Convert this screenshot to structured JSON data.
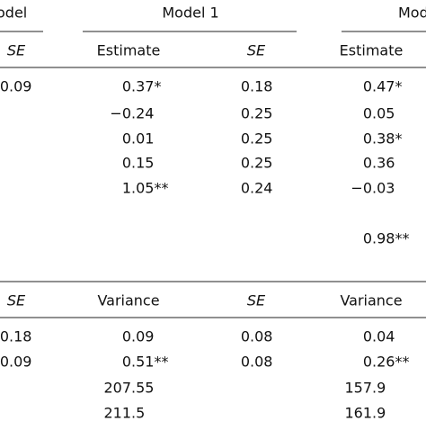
{
  "table": {
    "group_headers": [
      "odel",
      "Model 1",
      "Mod"
    ],
    "fixed": {
      "columns": [
        "SE",
        "Estimate",
        "SE",
        "Estimate"
      ],
      "rows": [
        [
          "0.09",
          "0.37*",
          "0.18",
          "0.47*"
        ],
        [
          null,
          "−0.24",
          "0.25",
          "0.05"
        ],
        [
          null,
          "0.01",
          "0.25",
          "0.38*"
        ],
        [
          null,
          "0.15",
          "0.25",
          "0.36"
        ],
        [
          null,
          "1.05**",
          "0.24",
          "−0.03"
        ],
        [
          null,
          null,
          null,
          null
        ],
        [
          null,
          null,
          null,
          "0.98**"
        ]
      ]
    },
    "random": {
      "columns": [
        "SE",
        "Variance",
        "SE",
        "Variance"
      ],
      "rows": [
        [
          "0.18",
          "0.09",
          "0.08",
          "0.04"
        ],
        [
          "0.09",
          "0.51**",
          "0.08",
          "0.26**"
        ],
        [
          null,
          "207.55",
          null,
          "157.9"
        ],
        [
          null,
          "211.5",
          null,
          "161.9"
        ]
      ]
    }
  }
}
